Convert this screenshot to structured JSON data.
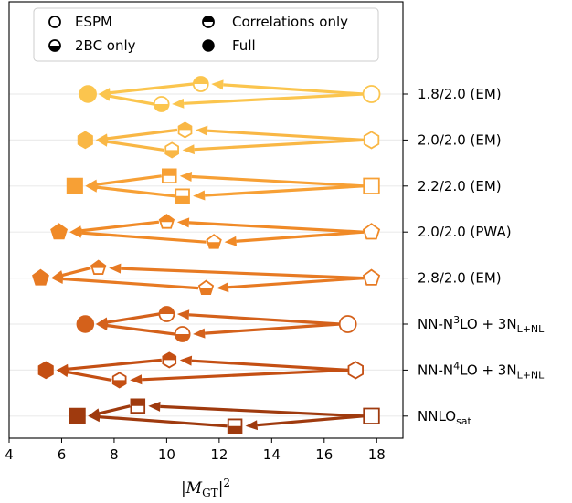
{
  "chart_data": {
    "type": "scatter",
    "title": "",
    "xlabel": "|M_GT|^2",
    "xlabel_parts": {
      "open": "|",
      "var": "M",
      "sub": "GT",
      "close": "|",
      "sup": "2"
    },
    "ylabel": "",
    "xlim": [
      4,
      19
    ],
    "xticks": [
      "4",
      "6",
      "8",
      "10",
      "12",
      "14",
      "16",
      "18"
    ],
    "grid": "horizontal",
    "legend": {
      "position": "top",
      "entries": [
        {
          "label": "ESPM",
          "style": "open"
        },
        {
          "label": "Correlations only",
          "style": "top-half"
        },
        {
          "label": "2BC only",
          "style": "bottom-half"
        },
        {
          "label": "Full",
          "style": "filled"
        }
      ]
    },
    "interactions": [
      {
        "label_main": "1.8/2.0 (EM)",
        "marker": "circle",
        "color": "#fbc54e",
        "espm": 17.8,
        "correlations_only": 11.3,
        "bc2_only": 9.8,
        "full": 7.0
      },
      {
        "label_main": "2.0/2.0 (EM)",
        "marker": "hexagon",
        "color": "#f9b745",
        "espm": 17.8,
        "correlations_only": 10.7,
        "bc2_only": 10.2,
        "full": 6.9
      },
      {
        "label_main": "2.2/2.0 (EM)",
        "marker": "square",
        "color": "#f7a035",
        "espm": 17.8,
        "correlations_only": 10.1,
        "bc2_only": 10.6,
        "full": 6.5
      },
      {
        "label_main": "2.0/2.0 (PWA)",
        "marker": "pentagon",
        "color": "#f08a27",
        "espm": 17.8,
        "correlations_only": 10.0,
        "bc2_only": 11.8,
        "full": 5.9
      },
      {
        "label_main": "2.8/2.0 (EM)",
        "marker": "pentagon",
        "color": "#e77a23",
        "espm": 17.8,
        "correlations_only": 7.4,
        "bc2_only": 11.5,
        "full": 5.2
      },
      {
        "label_main": "NN-N",
        "label_sup": "3",
        "label_mid": "LO + 3N",
        "label_sub": "L+NL",
        "marker": "circle",
        "color": "#d4611b",
        "espm": 16.9,
        "correlations_only": 10.0,
        "bc2_only": 10.6,
        "full": 6.9
      },
      {
        "label_main": "NN-N",
        "label_sup": "4",
        "label_mid": "LO + 3N",
        "label_sub": "L+NL",
        "marker": "hexagon",
        "color": "#c44f13",
        "espm": 17.2,
        "correlations_only": 10.1,
        "bc2_only": 8.2,
        "full": 5.4
      },
      {
        "label_main": "NNLO",
        "label_sub": "sat",
        "marker": "square",
        "color": "#9f3a0e",
        "espm": 17.8,
        "correlations_only": 8.9,
        "bc2_only": 12.6,
        "full": 6.6
      }
    ]
  }
}
